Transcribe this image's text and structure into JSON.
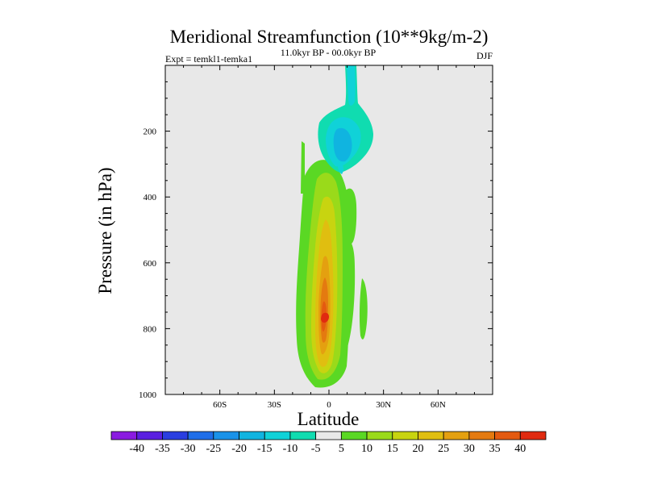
{
  "chart_data": {
    "type": "contour",
    "title": "Meridional Streamfunction (10**9kg/m-2)",
    "subtitle_left": "Expt = temkl1-temka1",
    "subtitle_center": "11.0kyr BP - 00.0kyr BP",
    "subtitle_right": "DJF",
    "xlabel": "Latitude",
    "ylabel": "Pressure (in hPa)",
    "xlim": [
      -90,
      90
    ],
    "ylim": [
      1000,
      0
    ],
    "x_ticks": [
      {
        "value": -60,
        "label": "60S"
      },
      {
        "value": -30,
        "label": "30S"
      },
      {
        "value": 0,
        "label": "0"
      },
      {
        "value": 30,
        "label": "30N"
      },
      {
        "value": 60,
        "label": "60N"
      }
    ],
    "y_ticks": [
      {
        "value": 200,
        "label": "200"
      },
      {
        "value": 400,
        "label": "400"
      },
      {
        "value": 600,
        "label": "600"
      },
      {
        "value": 800,
        "label": "800"
      },
      {
        "value": 1000,
        "label": "1000"
      }
    ],
    "colorbar": {
      "levels": [
        -40,
        -35,
        -30,
        -25,
        -20,
        -15,
        -10,
        -5,
        5,
        10,
        15,
        20,
        25,
        30,
        35,
        40
      ],
      "labels": [
        "-40",
        "-35",
        "-30",
        "-25",
        "-20",
        "-15",
        "-10",
        "-5",
        "5",
        "10",
        "15",
        "20",
        "25",
        "30",
        "35",
        "40"
      ],
      "colors": [
        "#8a1be0",
        "#5a1fe0",
        "#2a3ee0",
        "#1f6ee8",
        "#1a92e8",
        "#10b4e0",
        "#10d2d8",
        "#10dcb0",
        "#e8e8e8",
        "#5ad824",
        "#9ada1a",
        "#c8d410",
        "#e0be10",
        "#e4a010",
        "#e47a10",
        "#e45a10",
        "#e02a10"
      ]
    },
    "features": [
      {
        "name": "positive-cell-main",
        "lat_range": [
          -12,
          12
        ],
        "p_range": [
          270,
          985
        ],
        "max": 38,
        "center": [
          -1,
          770
        ]
      },
      {
        "name": "negative-cell-upper",
        "lat_range": [
          -4,
          16
        ],
        "p_range": [
          0,
          320
        ],
        "min": -15,
        "center": [
          8,
          220
        ]
      }
    ],
    "background_color": "#e8e8e8"
  }
}
